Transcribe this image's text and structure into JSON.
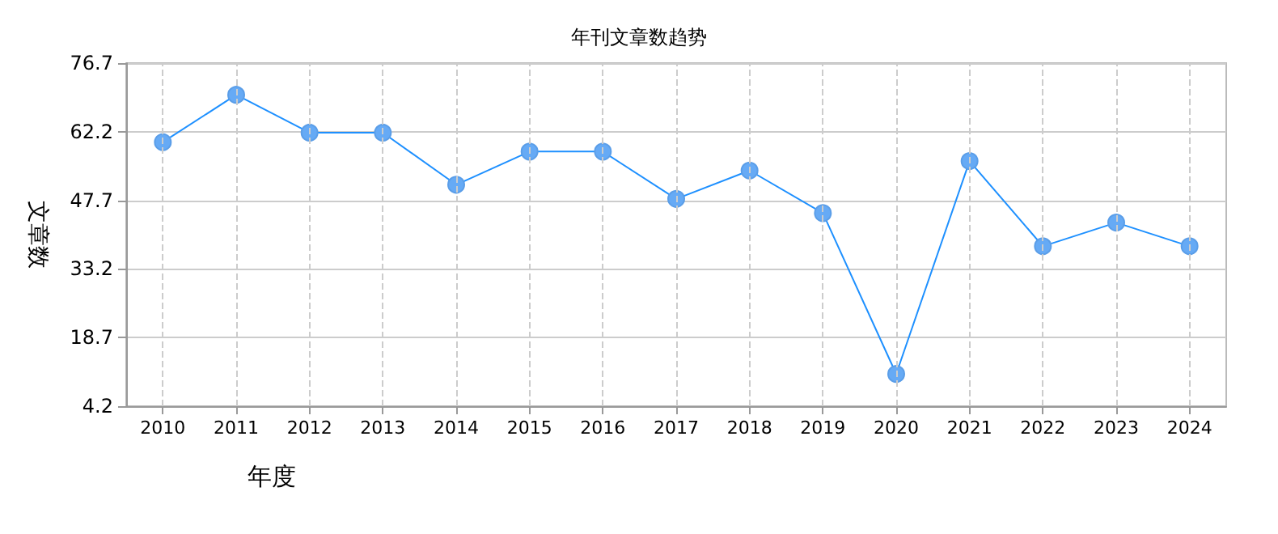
{
  "chart_data": {
    "type": "line",
    "title": "年刊文章数趋势",
    "xlabel": "年度",
    "ylabel": "文章数",
    "categories": [
      "2010",
      "2011",
      "2012",
      "2013",
      "2014",
      "2015",
      "2016",
      "2017",
      "2018",
      "2019",
      "2020",
      "2021",
      "2022",
      "2023",
      "2024"
    ],
    "series": [
      {
        "color": "#1e90ff",
        "values": [
          60,
          70,
          62,
          62,
          51,
          58,
          58,
          48,
          54,
          45,
          11,
          56,
          38,
          43,
          38
        ]
      }
    ],
    "ylim": [
      4.2,
      76.7
    ],
    "yticks": [
      4.2,
      18.7,
      33.2,
      47.7,
      62.2,
      76.7
    ],
    "grid": true,
    "marker": "circle",
    "line_style": "solid"
  }
}
